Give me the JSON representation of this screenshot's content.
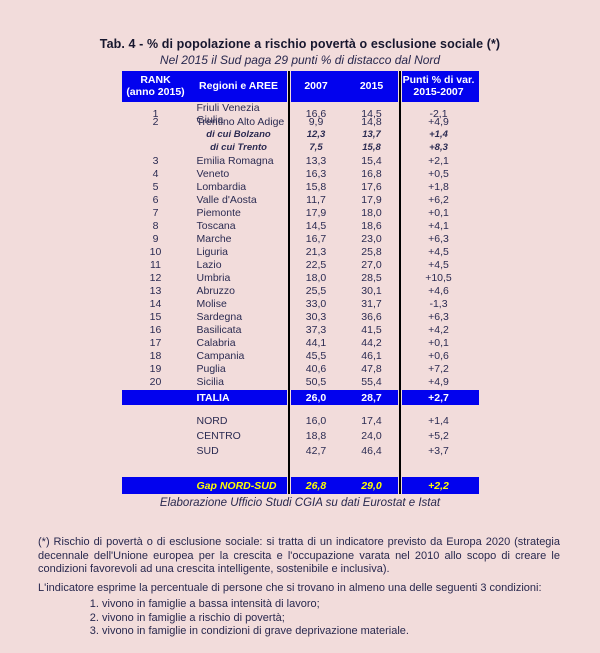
{
  "title": "Tab. 4 - % di popolazione a rischio povertà o esclusione sociale (*)",
  "subtitle": "Nel 2015 il Sud paga 29 punti % di distacco dal Nord",
  "colors": {
    "background_pink": "#f2dcdb",
    "header_blue": "#0202ee",
    "highlight_yellow": "#ffff00",
    "separator_black": "#000000"
  },
  "table": {
    "headers": {
      "rank_line1": "RANK",
      "rank_line2": "(anno 2015)",
      "region": "Regioni e AREE",
      "y2007": "2007",
      "y2015": "2015",
      "punti_line1": "Punti % di var.",
      "punti_line2": "2015-2007"
    },
    "rows": [
      {
        "type": "region",
        "rank": "1",
        "region": "Friuli Venezia Giulia",
        "v2007": "16,6",
        "v2015": "14,5",
        "var": "-2,1"
      },
      {
        "type": "region",
        "rank": "2",
        "region": "Trentino Alto Adige",
        "v2007": "9,9",
        "v2015": "14,8",
        "var": "+4,9"
      },
      {
        "type": "sub",
        "rank": "",
        "region": "di cui Bolzano",
        "v2007": "12,3",
        "v2015": "13,7",
        "var": "+1,4"
      },
      {
        "type": "sub",
        "rank": "",
        "region": "di cui Trento",
        "v2007": "7,5",
        "v2015": "15,8",
        "var": "+8,3"
      },
      {
        "type": "region",
        "rank": "3",
        "region": "Emilia Romagna",
        "v2007": "13,3",
        "v2015": "15,4",
        "var": "+2,1"
      },
      {
        "type": "region",
        "rank": "4",
        "region": "Veneto",
        "v2007": "16,3",
        "v2015": "16,8",
        "var": "+0,5"
      },
      {
        "type": "region",
        "rank": "5",
        "region": "Lombardia",
        "v2007": "15,8",
        "v2015": "17,6",
        "var": "+1,8"
      },
      {
        "type": "region",
        "rank": "6",
        "region": "Valle d'Aosta",
        "v2007": "11,7",
        "v2015": "17,9",
        "var": "+6,2"
      },
      {
        "type": "region",
        "rank": "7",
        "region": "Piemonte",
        "v2007": "17,9",
        "v2015": "18,0",
        "var": "+0,1"
      },
      {
        "type": "region",
        "rank": "8",
        "region": "Toscana",
        "v2007": "14,5",
        "v2015": "18,6",
        "var": "+4,1"
      },
      {
        "type": "region",
        "rank": "9",
        "region": "Marche",
        "v2007": "16,7",
        "v2015": "23,0",
        "var": "+6,3"
      },
      {
        "type": "region",
        "rank": "10",
        "region": "Liguria",
        "v2007": "21,3",
        "v2015": "25,8",
        "var": "+4,5"
      },
      {
        "type": "region",
        "rank": "11",
        "region": "Lazio",
        "v2007": "22,5",
        "v2015": "27,0",
        "var": "+4,5"
      },
      {
        "type": "region",
        "rank": "12",
        "region": "Umbria",
        "v2007": "18,0",
        "v2015": "28,5",
        "var": "+10,5"
      },
      {
        "type": "region",
        "rank": "13",
        "region": "Abruzzo",
        "v2007": "25,5",
        "v2015": "30,1",
        "var": "+4,6"
      },
      {
        "type": "region",
        "rank": "14",
        "region": "Molise",
        "v2007": "33,0",
        "v2015": "31,7",
        "var": "-1,3"
      },
      {
        "type": "region",
        "rank": "15",
        "region": "Sardegna",
        "v2007": "30,3",
        "v2015": "36,6",
        "var": "+6,3"
      },
      {
        "type": "region",
        "rank": "16",
        "region": "Basilicata",
        "v2007": "37,3",
        "v2015": "41,5",
        "var": "+4,2"
      },
      {
        "type": "region",
        "rank": "17",
        "region": "Calabria",
        "v2007": "44,1",
        "v2015": "44,2",
        "var": "+0,1"
      },
      {
        "type": "region",
        "rank": "18",
        "region": "Campania",
        "v2007": "45,5",
        "v2015": "46,1",
        "var": "+0,6"
      },
      {
        "type": "region",
        "rank": "19",
        "region": "Puglia",
        "v2007": "40,6",
        "v2015": "47,8",
        "var": "+7,2"
      },
      {
        "type": "region",
        "rank": "20",
        "region": "Sicilia",
        "v2007": "50,5",
        "v2015": "55,4",
        "var": "+4,9"
      }
    ],
    "italia": {
      "label": "ITALIA",
      "v2007": "26,0",
      "v2015": "28,7",
      "var": "+2,7"
    },
    "areas": [
      {
        "label": "NORD",
        "v2007": "16,0",
        "v2015": "17,4",
        "var": "+1,4"
      },
      {
        "label": "CENTRO",
        "v2007": "18,8",
        "v2015": "24,0",
        "var": "+5,2"
      },
      {
        "label": "SUD",
        "v2007": "42,7",
        "v2015": "46,4",
        "var": "+3,7"
      }
    ],
    "gap": {
      "label": "Gap NORD-SUD",
      "v2007": "26,8",
      "v2015": "29,0",
      "var": "+2,2"
    }
  },
  "caption": "Elaborazione Ufficio Studi CGIA su dati Eurostat e Istat",
  "footnote": {
    "p1": "(*) Rischio di povertà o di esclusione sociale: si tratta di un indicatore previsto da Europa 2020 (strategia decennale dell'Unione europea per la crescita e l'occupazione varata nel 2010 allo scopo di creare le condizioni favorevoli ad una crescita intelligente, sostenibile e inclusiva).",
    "p2": "L'indicatore esprime la percentuale di persone che si trovano in almeno una delle seguenti 3 condizioni:",
    "items": [
      "vivono in famiglie a bassa intensità di lavoro;",
      "vivono in famiglie a rischio di povertà;",
      "vivono in famiglie in condizioni di grave deprivazione materiale."
    ]
  }
}
